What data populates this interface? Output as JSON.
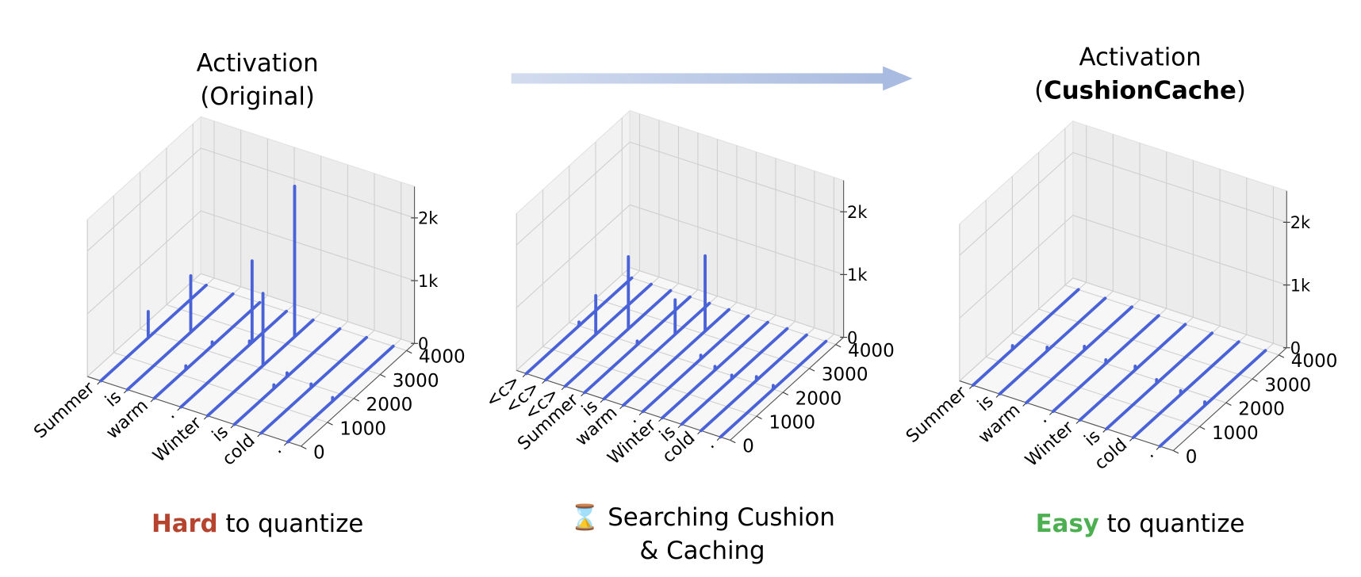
{
  "chart_data": [
    {
      "type": "spike3d",
      "title": "Activation",
      "subtitle": [
        {
          "text": "(Original)"
        }
      ],
      "categories": [
        "Summer",
        "is",
        "warm",
        ".",
        "Winter",
        "is",
        "cold",
        "."
      ],
      "category_colors": [
        "#000000",
        "#000000",
        "#000000",
        "#000000",
        "#000000",
        "#000000",
        "#000000",
        "#000000"
      ],
      "values": [
        420,
        900,
        60,
        60,
        1150,
        60,
        60,
        60
      ],
      "peak_channels": [
        1800,
        2400,
        2200,
        2600,
        2100,
        2000,
        1900,
        1700
      ],
      "second_values": [
        null,
        null,
        60,
        1300,
        2400,
        60,
        null,
        null
      ],
      "second_channels": [
        null,
        null,
        1200,
        2700,
        3300,
        1500,
        null,
        null
      ],
      "color": "#4a62d8",
      "ylim": [
        0,
        4300
      ],
      "yticks": [
        0,
        1000,
        2000,
        3000,
        4000
      ],
      "zlim": [
        0,
        2500
      ],
      "zticks": [
        0,
        {
          "value": 1000,
          "label": "1k"
        },
        {
          "value": 2000,
          "label": "2k"
        }
      ],
      "grid": true,
      "caption": [
        [
          {
            "text": "Hard",
            "color": "#b5432e",
            "bold": true
          },
          {
            "text": " to quantize"
          }
        ]
      ]
    },
    {
      "type": "spike3d",
      "categories": [
        "<c>",
        "<c>",
        "<c>",
        "Summer",
        "is",
        "warm",
        ".",
        "Winter",
        "is",
        "cold",
        "."
      ],
      "category_colors": [
        "#e8877f",
        "#e8877f",
        "#e8877f",
        "#000000",
        "#000000",
        "#000000",
        "#000000",
        "#000000",
        "#000000",
        "#000000",
        "#000000"
      ],
      "values": [
        60,
        620,
        1150,
        60,
        550,
        1200,
        60,
        60,
        60,
        60,
        60
      ],
      "peak_channels": [
        2000,
        1900,
        2400,
        2000,
        2700,
        3100,
        2200,
        2000,
        1900,
        2100,
        2000
      ],
      "second_values": [
        null,
        null,
        null,
        null,
        null,
        null,
        null,
        null,
        null,
        null,
        null
      ],
      "second_channels": [
        null,
        null,
        null,
        null,
        null,
        null,
        null,
        null,
        null,
        null,
        null
      ],
      "color": "#4a62d8",
      "ylim": [
        0,
        4300
      ],
      "yticks": [
        0,
        1000,
        2000,
        3000,
        4000
      ],
      "zlim": [
        0,
        2500
      ],
      "zticks": [
        0,
        {
          "value": 1000,
          "label": "1k"
        },
        {
          "value": 2000,
          "label": "2k"
        }
      ],
      "grid": true,
      "caption": [
        [
          {
            "text": "⌛ Searching Cushion"
          }
        ],
        [
          {
            "text": "& Caching"
          }
        ]
      ]
    },
    {
      "type": "spike3d",
      "title": "Activation",
      "subtitle": [
        {
          "text": "("
        },
        {
          "text": "CushionCache",
          "bold": true
        },
        {
          "text": ")"
        }
      ],
      "categories": [
        "Summer",
        "is",
        "warm",
        ".",
        "Winter",
        "is",
        "cold",
        "."
      ],
      "category_colors": [
        "#000000",
        "#000000",
        "#000000",
        "#000000",
        "#000000",
        "#000000",
        "#000000",
        "#000000"
      ],
      "values": [
        60,
        60,
        60,
        60,
        60,
        60,
        60,
        60
      ],
      "peak_channels": [
        1500,
        1800,
        2200,
        2000,
        2100,
        1900,
        1800,
        1700
      ],
      "second_values": [
        null,
        null,
        null,
        null,
        null,
        null,
        null,
        null
      ],
      "second_channels": [
        null,
        null,
        null,
        null,
        null,
        null,
        null,
        null
      ],
      "color": "#4a62d8",
      "ylim": [
        0,
        4300
      ],
      "yticks": [
        0,
        1000,
        2000,
        3000,
        4000
      ],
      "zlim": [
        0,
        2500
      ],
      "zticks": [
        0,
        {
          "value": 1000,
          "label": "1k"
        },
        {
          "value": 2000,
          "label": "2k"
        }
      ],
      "grid": true,
      "caption": [
        [
          {
            "text": "Easy",
            "color": "#4caf50",
            "bold": true
          },
          {
            "text": " to quantize"
          }
        ]
      ]
    }
  ]
}
